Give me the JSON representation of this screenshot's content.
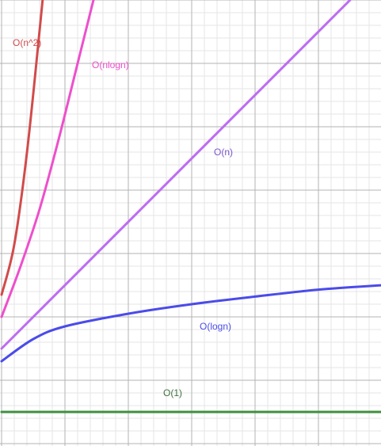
{
  "chart_data": {
    "type": "line",
    "title": "",
    "xlabel": "",
    "ylabel": "",
    "grid": true,
    "xlim": [
      0,
      6
    ],
    "ylim": [
      0,
      7
    ],
    "series": [
      {
        "name": "O(n^2)",
        "color": "#d14b4b",
        "function": "n^2",
        "points": [
          [
            0.0,
            2.35
          ],
          [
            0.2,
            3.14
          ],
          [
            0.4,
            4.59
          ],
          [
            0.6,
            6.52
          ],
          [
            0.8,
            8.56
          ]
        ]
      },
      {
        "name": "O(nlogn)",
        "color": "#ee4fcc",
        "function": "nlogn",
        "points": [
          [
            0.0,
            2.0
          ],
          [
            0.3,
            2.8
          ],
          [
            0.6,
            3.7
          ],
          [
            0.9,
            4.8
          ],
          [
            1.2,
            6.0
          ],
          [
            1.5,
            7.2
          ]
        ]
      },
      {
        "name": "O(n)",
        "color": "#bd6cf0",
        "function": "n",
        "points": [
          [
            0.0,
            1.5
          ],
          [
            5.5,
            7.0
          ]
        ]
      },
      {
        "name": "O(logn)",
        "color": "#4b4bea",
        "function": "logn",
        "points": [
          [
            0.0,
            1.3
          ],
          [
            0.5,
            1.65
          ],
          [
            1.0,
            1.85
          ],
          [
            2.0,
            2.05
          ],
          [
            3.0,
            2.2
          ],
          [
            4.0,
            2.32
          ],
          [
            5.0,
            2.43
          ],
          [
            6.0,
            2.5
          ]
        ]
      },
      {
        "name": "O(1)",
        "color": "#3f8f3f",
        "function": "1",
        "points": [
          [
            0.0,
            0.5
          ],
          [
            6.0,
            0.5
          ]
        ]
      }
    ],
    "labels": [
      {
        "text": "O(n^2)",
        "series": "O(n^2)"
      },
      {
        "text": "O(nlogn)",
        "series": "O(nlogn)"
      },
      {
        "text": "O(n)",
        "series": "O(n)"
      },
      {
        "text": "O(logn)",
        "series": "O(logn)"
      },
      {
        "text": "O(1)",
        "series": "O(1)"
      }
    ],
    "colors": {
      "grid_minor": "#e6e6e6",
      "grid_major": "#b3b3b3",
      "background": "#ffffff"
    }
  }
}
